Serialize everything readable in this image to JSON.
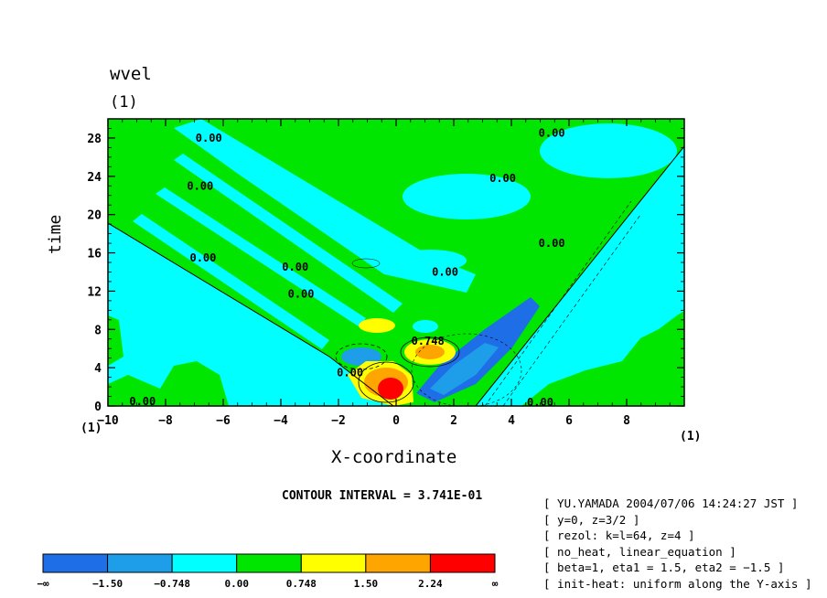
{
  "chart_data": {
    "type": "heatmap",
    "title": "wvel",
    "title_units": "(1)",
    "xlabel": "X-coordinate",
    "ylabel": "time",
    "x_units_label": "(1)",
    "y_units_label": "(1)",
    "xlim": [
      -10,
      10
    ],
    "ylim": [
      0,
      30
    ],
    "x_ticks": [
      -10,
      -8,
      -6,
      -4,
      -2,
      0,
      2,
      4,
      6,
      8
    ],
    "y_ticks": [
      0,
      4,
      8,
      12,
      16,
      20,
      24,
      28
    ],
    "contour_interval_text": "CONTOUR INTERVAL = 3.741E-01",
    "contour_labels": [
      {
        "text": "0.00",
        "x": -6.5,
        "y": 28
      },
      {
        "text": "0.00",
        "x": -6.8,
        "y": 23
      },
      {
        "text": "0.00",
        "x": -6.7,
        "y": 15.5
      },
      {
        "text": "0.00",
        "x": -3.5,
        "y": 14.5
      },
      {
        "text": "0.00",
        "x": -3.3,
        "y": 11.7
      },
      {
        "text": "0.00",
        "x": 1.7,
        "y": 14
      },
      {
        "text": "0.00",
        "x": 3.7,
        "y": 23.8
      },
      {
        "text": "0.00",
        "x": 5.4,
        "y": 28.5
      },
      {
        "text": "0.00",
        "x": 5.4,
        "y": 17
      },
      {
        "text": "0.00",
        "x": -1.6,
        "y": 3.5
      },
      {
        "text": "0.00",
        "x": -8.8,
        "y": 0.5
      },
      {
        "text": "0.00",
        "x": 5.0,
        "y": 0.4
      },
      {
        "text": "0.748",
        "x": 1.1,
        "y": 6.8
      }
    ],
    "colorbar": {
      "colors": [
        "#1e6ee8",
        "#1e9ee8",
        "#00ffff",
        "#00e600",
        "#ffff00",
        "#ffa500",
        "#ff0000"
      ],
      "labels": [
        "−∞",
        "−1.50",
        "−0.748",
        "0.00",
        "0.748",
        "1.50",
        "2.24",
        "∞"
      ]
    }
  },
  "info_lines": [
    "[ YU.YAMADA 2004/07/06 14:24:27 JST ]",
    "[ y=0, z=3/2 ]",
    "[ rezol: k=l=64, z=4 ]",
    "[ no_heat, linear_equation ]",
    "[ beta=1, eta1 = 1.5, eta2 = −1.5 ]",
    "[ init-heat: uniform along the Y-axis ]"
  ]
}
